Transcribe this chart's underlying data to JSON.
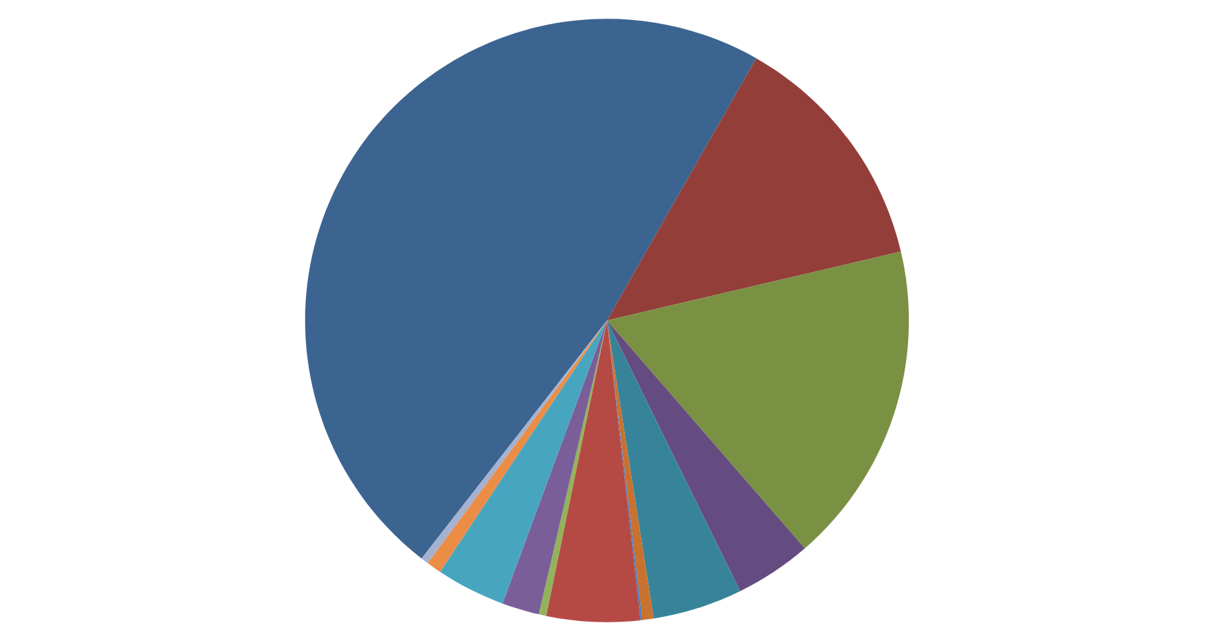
{
  "chart_data": {
    "type": "pie",
    "categories": [
      null,
      null,
      null,
      null,
      null,
      null,
      null,
      null,
      null,
      null,
      null,
      null,
      null
    ],
    "values": [
      47.7,
      13.1,
      17.3,
      4.1,
      4.8,
      0.6,
      0.1,
      5.0,
      0.4,
      2.0,
      3.7,
      0.8,
      0.4
    ],
    "colors": [
      "#3c6491",
      "#943e3a",
      "#7a9144",
      "#654c80",
      "#37849a",
      "#c9712f",
      "#4a7ebb",
      "#b54a45",
      "#93b35a",
      "#7a5e99",
      "#47a5bf",
      "#eb8d45",
      "#a3b2d0"
    ]
  }
}
